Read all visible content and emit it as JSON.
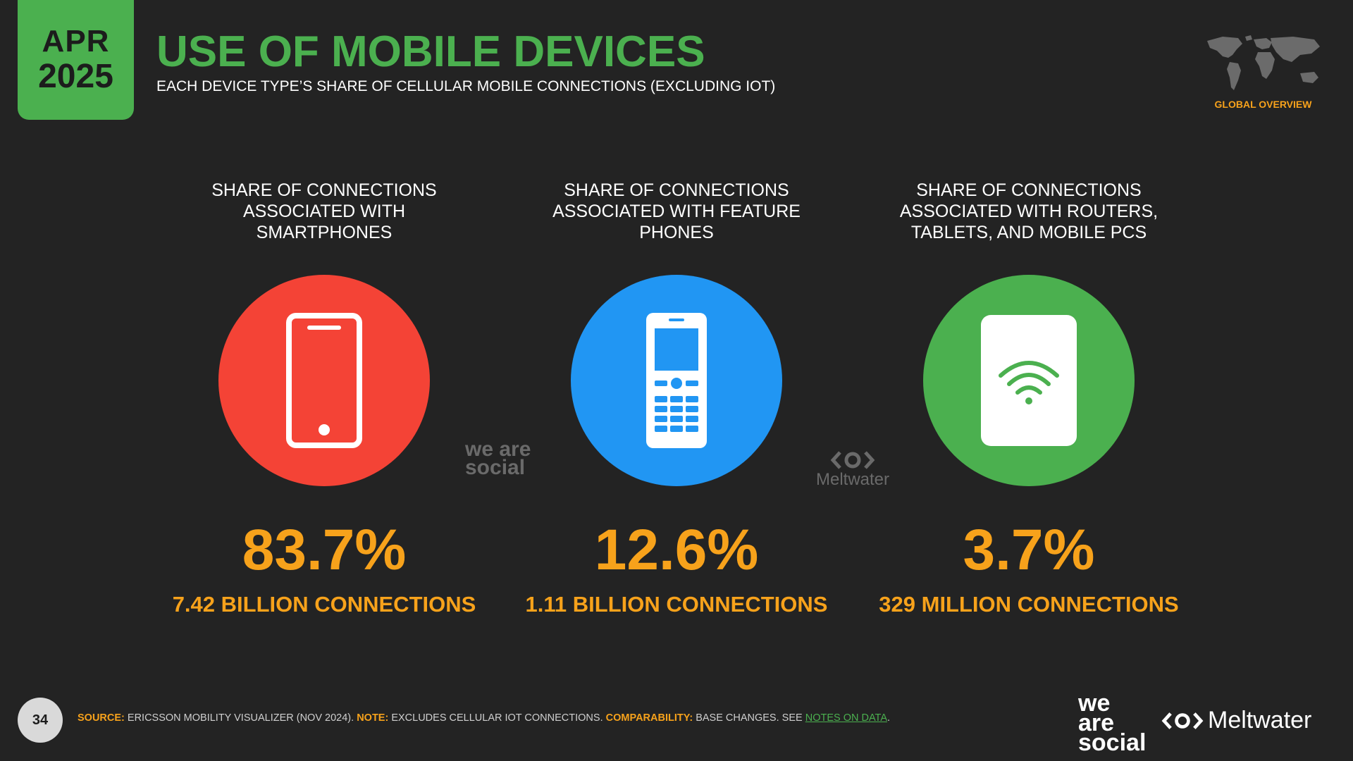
{
  "badge": {
    "month": "APR",
    "year": "2025"
  },
  "header": {
    "title": "USE OF MOBILE DEVICES",
    "subtitle": "EACH DEVICE TYPE’S SHARE OF CELLULAR MOBILE CONNECTIONS (EXCLUDING IOT)",
    "section": "GLOBAL OVERVIEW"
  },
  "stats": [
    {
      "heading": "SHARE OF CONNECTIONS ASSOCIATED WITH SMARTPHONES",
      "value": "83.7%",
      "subvalue": "7.42 BILLION CONNECTIONS",
      "color": "#f44336",
      "icon": "smartphone-icon"
    },
    {
      "heading": "SHARE OF CONNECTIONS ASSOCIATED WITH FEATURE PHONES",
      "value": "12.6%",
      "subvalue": "1.11 BILLION CONNECTIONS",
      "color": "#2196f3",
      "icon": "feature-phone-icon"
    },
    {
      "heading": "SHARE OF CONNECTIONS ASSOCIATED WITH ROUTERS, TABLETS, AND MOBILE PCS",
      "value": "3.7%",
      "subvalue": "329 MILLION CONNECTIONS",
      "color": "#4bb04f",
      "icon": "router-wifi-icon"
    }
  ],
  "watermarks": {
    "was": "we are social",
    "meltwater": "Meltwater"
  },
  "footer": {
    "page": "34",
    "source_label": "SOURCE:",
    "source_text": "ERICSSON MOBILITY VISUALIZER (NOV 2024).",
    "note_label": "NOTE:",
    "note_text": "EXCLUDES CELLULAR IOT CONNECTIONS.",
    "comp_label": "COMPARABILITY:",
    "comp_text": "BASE CHANGES. SEE",
    "link_text": "NOTES ON DATA",
    "end": "."
  },
  "brand": {
    "was_line1": "we",
    "was_line2": "are",
    "was_line3": "social",
    "meltwater": "Meltwater"
  }
}
